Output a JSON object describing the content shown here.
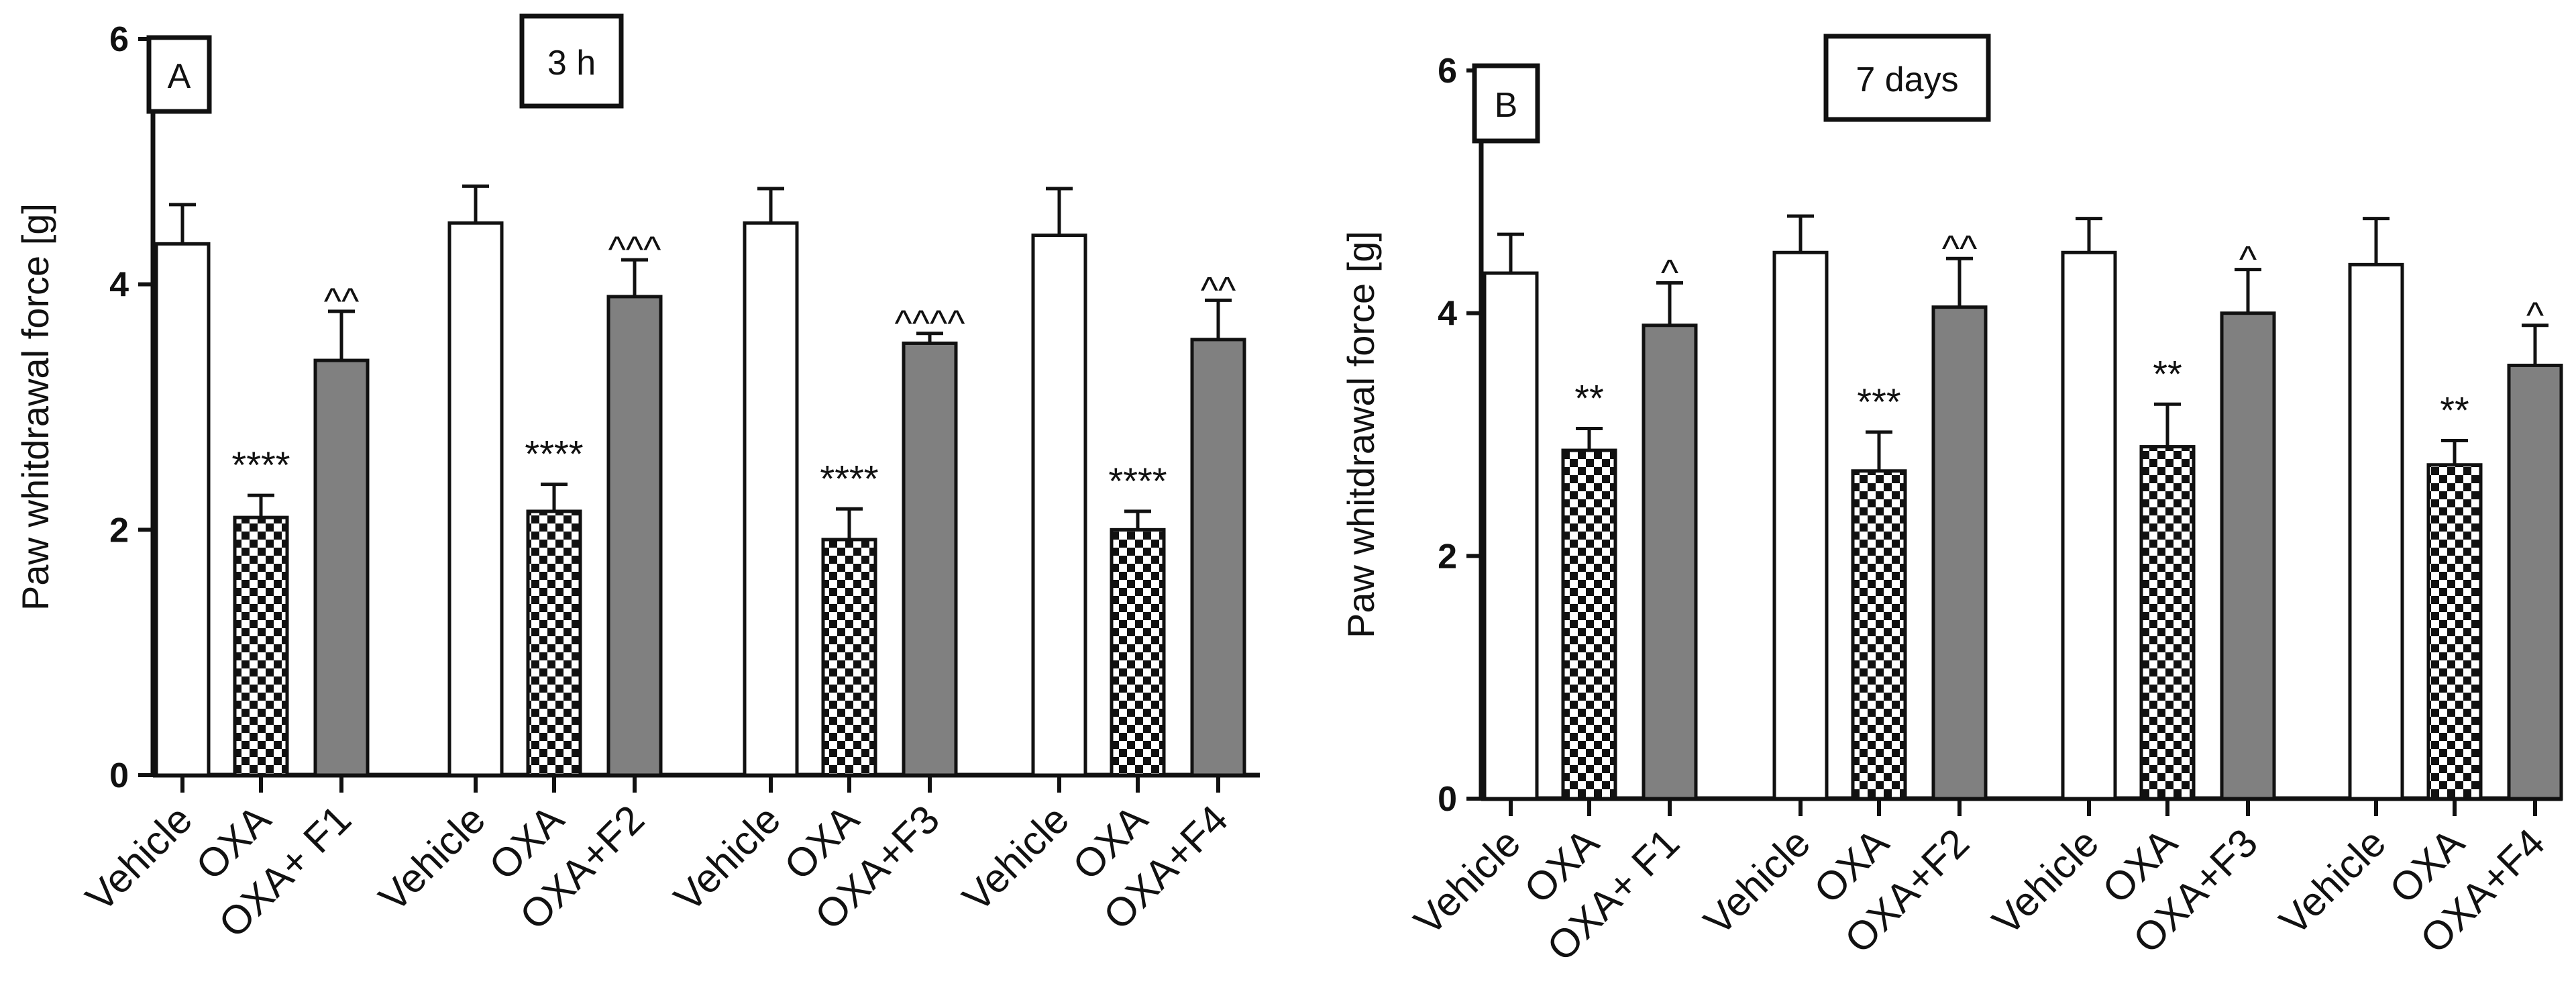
{
  "chart_data": [
    {
      "type": "bar",
      "panel_label": "A",
      "title": "3 h",
      "ylabel": "Paw whitdrawal force [g]",
      "ylim": [
        0,
        6
      ],
      "yticks": [
        "0",
        "2",
        "4",
        "6"
      ],
      "grid": false,
      "groups": [
        {
          "categories": [
            "Vehicle",
            "OXA",
            "OXA+ F1"
          ],
          "values": [
            4.33,
            2.1,
            3.38
          ],
          "errors": [
            0.32,
            0.18,
            0.4
          ],
          "significance": [
            "",
            "****",
            "^^"
          ]
        },
        {
          "categories": [
            "Vehicle",
            "OXA",
            "OXA+F2"
          ],
          "values": [
            4.5,
            2.15,
            3.9
          ],
          "errors": [
            0.3,
            0.22,
            0.3
          ],
          "significance": [
            "",
            "****",
            "^^^"
          ]
        },
        {
          "categories": [
            "Vehicle",
            "OXA",
            "OXA+F3"
          ],
          "values": [
            4.5,
            1.92,
            3.52
          ],
          "errors": [
            0.28,
            0.25,
            0.08
          ],
          "significance": [
            "",
            "****",
            "^^^^"
          ]
        },
        {
          "categories": [
            "Vehicle",
            "OXA",
            "OXA+F4"
          ],
          "values": [
            4.4,
            2.0,
            3.55
          ],
          "errors": [
            0.38,
            0.15,
            0.32
          ],
          "significance": [
            "",
            "****",
            "^^"
          ]
        }
      ]
    },
    {
      "type": "bar",
      "panel_label": "B",
      "title": "7 days",
      "ylabel": "Paw whitdrawal force [g]",
      "ylim": [
        0,
        6
      ],
      "yticks": [
        "0",
        "2",
        "4",
        "6"
      ],
      "grid": false,
      "groups": [
        {
          "categories": [
            "Vehicle",
            "OXA",
            "OXA+ F1"
          ],
          "values": [
            4.33,
            2.87,
            3.9
          ],
          "errors": [
            0.32,
            0.18,
            0.35
          ],
          "significance": [
            "",
            "**",
            "^"
          ]
        },
        {
          "categories": [
            "Vehicle",
            "OXA",
            "OXA+F2"
          ],
          "values": [
            4.5,
            2.7,
            4.05
          ],
          "errors": [
            0.3,
            0.32,
            0.4
          ],
          "significance": [
            "",
            "***",
            "^^"
          ]
        },
        {
          "categories": [
            "Vehicle",
            "OXA",
            "OXA+F3"
          ],
          "values": [
            4.5,
            2.9,
            4.0
          ],
          "errors": [
            0.28,
            0.35,
            0.36
          ],
          "significance": [
            "",
            "**",
            "^"
          ]
        },
        {
          "categories": [
            "Vehicle",
            "OXA",
            "OXA+F4"
          ],
          "values": [
            4.4,
            2.75,
            3.57
          ],
          "errors": [
            0.38,
            0.2,
            0.33
          ],
          "significance": [
            "",
            "**",
            "^"
          ]
        }
      ]
    }
  ],
  "colors": {
    "vehicle": "#ffffff",
    "treated": "#808080",
    "axis": "#111111",
    "checker_dark": "#111111",
    "checker_light": "#ffffff"
  }
}
